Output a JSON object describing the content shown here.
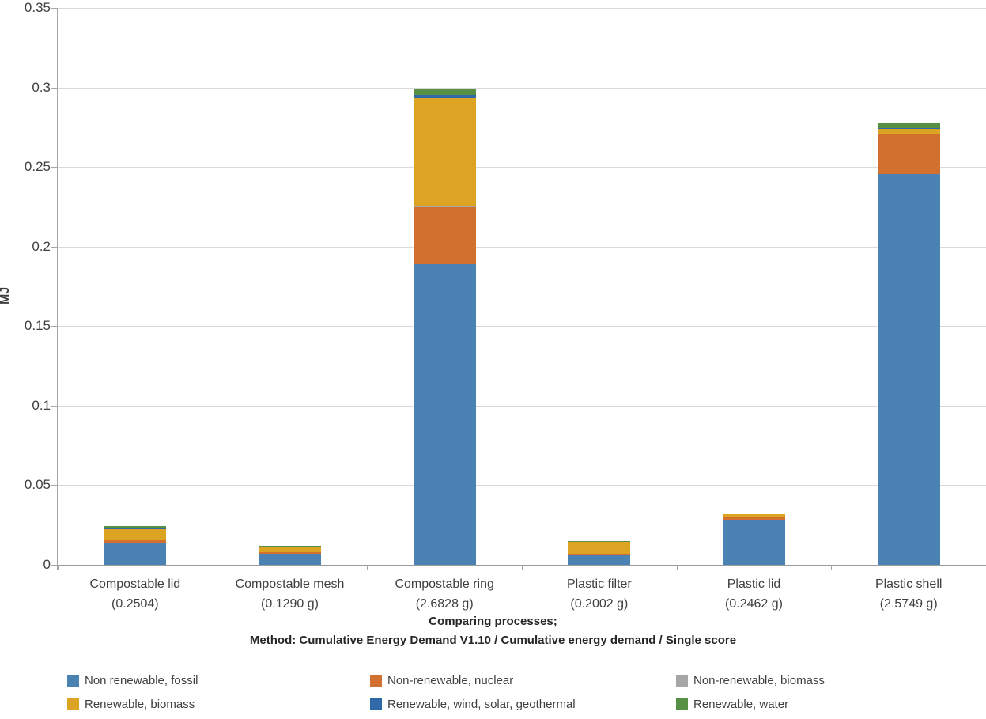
{
  "chart_data": {
    "type": "bar",
    "subtype": "stacked-vertical",
    "title": "",
    "ylabel": "MJ",
    "xlabel_line1": "Comparing processes;",
    "xlabel_line2": "Method: Cumulative Energy Demand V1.10 / Cumulative energy demand / Single score",
    "ylim": [
      0,
      0.35
    ],
    "ytick_step": 0.05,
    "yticks": [
      "0",
      "0.05",
      "0.1",
      "0.15",
      "0.2",
      "0.25",
      "0.3",
      "0.35"
    ],
    "grid": "horizontal",
    "legend_position": "bottom",
    "categories": [
      {
        "label": "Compostable lid",
        "mass": "(0.2504)"
      },
      {
        "label": "Compostable mesh",
        "mass": "(0.1290 g)"
      },
      {
        "label": "Compostable ring",
        "mass": "(2.6828 g)"
      },
      {
        "label": "Plastic filter",
        "mass": "(0.2002 g)"
      },
      {
        "label": "Plastic lid",
        "mass": "(0.2462 g)"
      },
      {
        "label": "Plastic shell",
        "mass": "(2.5749 g)"
      }
    ],
    "series": [
      {
        "name": "Non renewable, fossil",
        "color": "#4a82b4",
        "values": [
          0.0135,
          0.0066,
          0.189,
          0.0061,
          0.0285,
          0.2455
        ]
      },
      {
        "name": "Non-renewable, nuclear",
        "color": "#d2702f",
        "values": [
          0.002,
          0.0012,
          0.0355,
          0.0008,
          0.0017,
          0.0252
        ]
      },
      {
        "name": "Non-renewable, biomass",
        "color": "#a6a6a6",
        "values": [
          0.0001,
          0.0001,
          0.0005,
          0.0001,
          0.0002,
          0.0002
        ]
      },
      {
        "name": "Renewable, biomass",
        "color": "#dca422",
        "values": [
          0.0072,
          0.0035,
          0.0685,
          0.0072,
          0.0016,
          0.0033
        ]
      },
      {
        "name": "Renewable, wind, solar, geothermal",
        "color": "#2f69a8",
        "values": [
          0.0003,
          0.0002,
          0.0017,
          0.0001,
          0.0002,
          0.0003
        ]
      },
      {
        "name": "Renewable, water",
        "color": "#579044",
        "values": [
          0.0013,
          0.0004,
          0.0042,
          0.0004,
          0.0008,
          0.003
        ]
      }
    ]
  }
}
